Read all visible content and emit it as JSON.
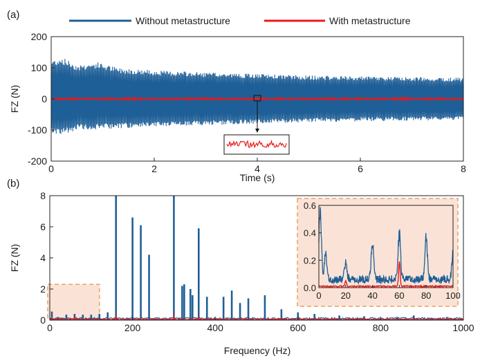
{
  "legend": {
    "items": [
      {
        "label": "Without metastructure",
        "color": "#1f5f97"
      },
      {
        "label": "With metastructure",
        "color": "#e8191b"
      }
    ],
    "placement": "top"
  },
  "chart_data": [
    {
      "panel_label": "(a)",
      "type": "line",
      "xlabel": "Time (s)",
      "ylabel": "FZ (N)",
      "xlim": [
        0,
        8
      ],
      "ylim": [
        -200,
        200
      ],
      "xticks": [
        "0",
        "2",
        "4",
        "6",
        "8"
      ],
      "yticks": [
        "200",
        "100",
        "0",
        "-100",
        "-200"
      ],
      "grid": false,
      "series": [
        {
          "name": "Without metastructure",
          "color": "#1f5f97",
          "envelope": {
            "t": [
              0,
              0.2,
              0.5,
              0.9,
              1.3,
              2.0,
              3.0,
              4.0,
              5.0,
              6.0,
              7.0,
              8.0
            ],
            "upper": [
              125,
              135,
              110,
              118,
              100,
              92,
              85,
              80,
              75,
              72,
              70,
              68
            ],
            "lower": [
              -110,
              -115,
              -100,
              -98,
              -95,
              -90,
              -85,
              -80,
              -75,
              -72,
              -70,
              -68
            ]
          }
        },
        {
          "name": "With metastructure",
          "color": "#e8191b",
          "amplitude": 3
        }
      ],
      "zoom_inset": {
        "source_x": 4.0,
        "source_y": 0
      }
    },
    {
      "panel_label": "(b)",
      "type": "line",
      "xlabel": "Frequency (Hz)",
      "ylabel": "FZ (N)",
      "xlim": [
        0,
        1000
      ],
      "ylim": [
        0,
        8
      ],
      "xticks": [
        "0",
        "200",
        "400",
        "600",
        "800",
        "1000"
      ],
      "yticks": [
        "8",
        "6",
        "4",
        "2",
        "0"
      ],
      "grid": false,
      "series": [
        {
          "name": "Without metastructure",
          "color": "#1f5f97",
          "peaks": [
            {
              "f": 160,
              "a": 8.0
            },
            {
              "f": 200,
              "a": 6.6
            },
            {
              "f": 220,
              "a": 6.1
            },
            {
              "f": 240,
              "a": 4.2
            },
            {
              "f": 300,
              "a": 8.0
            },
            {
              "f": 320,
              "a": 2.2
            },
            {
              "f": 325,
              "a": 2.3
            },
            {
              "f": 340,
              "a": 2.0
            },
            {
              "f": 345,
              "a": 1.6
            },
            {
              "f": 360,
              "a": 5.9
            },
            {
              "f": 380,
              "a": 1.5
            },
            {
              "f": 420,
              "a": 1.5
            },
            {
              "f": 440,
              "a": 1.9
            },
            {
              "f": 460,
              "a": 1.1
            },
            {
              "f": 480,
              "a": 1.4
            },
            {
              "f": 520,
              "a": 1.6
            },
            {
              "f": 560,
              "a": 0.7
            },
            {
              "f": 600,
              "a": 0.5
            },
            {
              "f": 640,
              "a": 0.4
            },
            {
              "f": 700,
              "a": 0.3
            },
            {
              "f": 760,
              "a": 0.25
            },
            {
              "f": 840,
              "a": 0.2
            },
            {
              "f": 880,
              "a": 0.3
            },
            {
              "f": 960,
              "a": 0.2
            },
            {
              "f": 140,
              "a": 0.5
            },
            {
              "f": 120,
              "a": 0.4
            },
            {
              "f": 100,
              "a": 0.35
            },
            {
              "f": 80,
              "a": 0.35
            },
            {
              "f": 60,
              "a": 0.4
            },
            {
              "f": 40,
              "a": 0.35
            },
            {
              "f": 20,
              "a": 0.2
            },
            {
              "f": 5,
              "a": 0.55
            }
          ]
        },
        {
          "name": "With metastructure",
          "color": "#e8191b",
          "peaks": [
            {
              "f": 60,
              "a": 0.2
            },
            {
              "f": 160,
              "a": 0.3
            },
            {
              "f": 300,
              "a": 0.35
            },
            {
              "f": 360,
              "a": 0.25
            },
            {
              "f": 220,
              "a": 0.15
            }
          ]
        }
      ],
      "highlight_range": {
        "x": [
          0,
          120
        ],
        "y": [
          0,
          2.3
        ]
      },
      "inset": {
        "xlim": [
          0,
          100
        ],
        "ylim": [
          0,
          0.6
        ],
        "xticks": [
          "0",
          "20",
          "40",
          "60",
          "80",
          "100"
        ],
        "yticks": [
          "0.6",
          "0.4",
          "0.2",
          "0.0"
        ],
        "blue_peaks": [
          {
            "f": 1,
            "a": 0.57
          },
          {
            "f": 5,
            "a": 0.2
          },
          {
            "f": 20,
            "a": 0.15
          },
          {
            "f": 40,
            "a": 0.33
          },
          {
            "f": 60,
            "a": 0.38
          },
          {
            "f": 80,
            "a": 0.35
          },
          {
            "f": 100,
            "a": 0.2
          }
        ],
        "red_peaks": [
          {
            "f": 20,
            "a": 0.04
          },
          {
            "f": 60,
            "a": 0.18
          }
        ]
      }
    }
  ]
}
